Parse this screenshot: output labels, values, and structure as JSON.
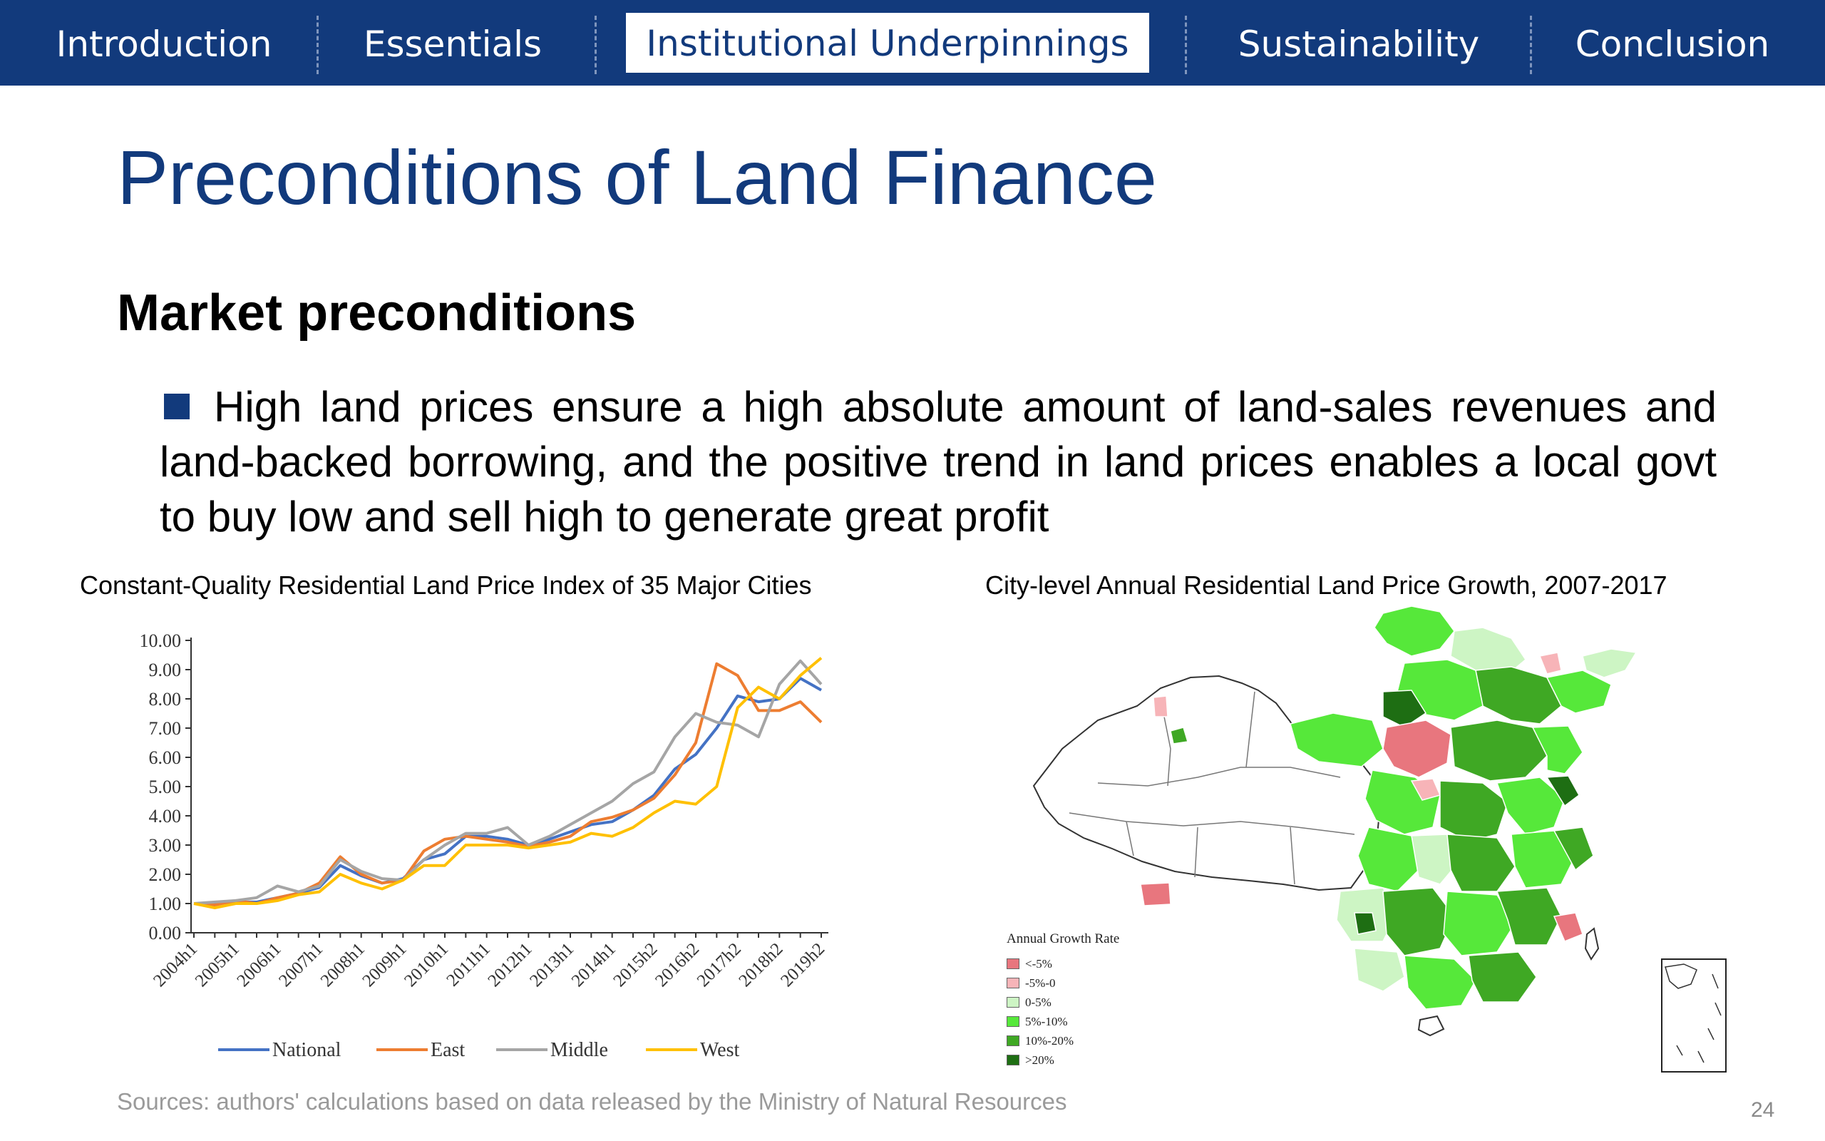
{
  "nav": {
    "tabs": [
      {
        "label": "Introduction",
        "active": false
      },
      {
        "label": "Essentials",
        "active": false
      },
      {
        "label": "Institutional Underpinnings",
        "active": true
      },
      {
        "label": "Sustainability",
        "active": false
      },
      {
        "label": "Conclusion",
        "active": false
      }
    ]
  },
  "slide": {
    "title": "Preconditions of Land Finance",
    "section": "Market preconditions",
    "bullet": "High land prices ensure a high absolute amount of land-sales revenues and land-backed borrowing, and the positive trend in land prices enables a local govt to buy low and sell high to generate great profit",
    "sources": "Sources: authors' calculations based on data released by the Ministry of Natural Resources",
    "page_number": "24"
  },
  "colors": {
    "brand": "#123a7c",
    "national": "#4472c4",
    "east": "#ed7d31",
    "middle": "#a5a5a5",
    "west": "#ffc000"
  },
  "chart_data": {
    "type": "line",
    "title": "Constant-Quality Residential Land Price Index of 35 Major Cities",
    "ylim": [
      0,
      10
    ],
    "y_ticks": [
      "0.00",
      "1.00",
      "2.00",
      "3.00",
      "4.00",
      "5.00",
      "6.00",
      "7.00",
      "8.00",
      "9.00",
      "10.00"
    ],
    "x_labels": [
      "2004h1",
      "2005h1",
      "2006h1",
      "2007h1",
      "2008h1",
      "2009h1",
      "2010h1",
      "2011h1",
      "2012h1",
      "2013h1",
      "2014h1",
      "2015h2",
      "2016h2",
      "2017h2",
      "2018h2",
      "2019h2"
    ],
    "x_label_every": 2,
    "legend_position": "bottom",
    "series": [
      {
        "name": "National",
        "color": "#4472c4",
        "values": [
          1.0,
          1.0,
          1.05,
          1.05,
          1.2,
          1.35,
          1.55,
          2.3,
          1.95,
          1.7,
          1.85,
          2.5,
          2.7,
          3.3,
          3.3,
          3.2,
          3.0,
          3.2,
          3.45,
          3.7,
          3.8,
          4.2,
          4.7,
          5.6,
          6.1,
          7.0,
          8.1,
          7.9,
          8.0,
          8.7,
          8.3
        ]
      },
      {
        "name": "East",
        "color": "#ed7d31",
        "values": [
          1.0,
          0.95,
          1.1,
          1.0,
          1.2,
          1.35,
          1.7,
          2.6,
          2.0,
          1.7,
          1.8,
          2.8,
          3.2,
          3.3,
          3.2,
          3.1,
          2.95,
          3.1,
          3.3,
          3.8,
          3.95,
          4.2,
          4.6,
          5.4,
          6.5,
          9.2,
          8.8,
          7.6,
          7.6,
          7.9,
          7.2
        ]
      },
      {
        "name": "Middle",
        "color": "#a5a5a5",
        "values": [
          1.0,
          1.05,
          1.1,
          1.2,
          1.6,
          1.4,
          1.6,
          2.5,
          2.1,
          1.85,
          1.8,
          2.5,
          3.0,
          3.4,
          3.4,
          3.6,
          3.0,
          3.3,
          3.7,
          4.1,
          4.5,
          5.1,
          5.5,
          6.7,
          7.5,
          7.2,
          7.1,
          6.7,
          8.5,
          9.3,
          8.5
        ]
      },
      {
        "name": "West",
        "color": "#ffc000",
        "values": [
          1.0,
          0.85,
          1.0,
          1.0,
          1.1,
          1.3,
          1.4,
          2.0,
          1.7,
          1.5,
          1.8,
          2.3,
          2.3,
          3.0,
          3.0,
          3.0,
          2.9,
          3.0,
          3.1,
          3.4,
          3.3,
          3.6,
          4.1,
          4.5,
          4.4,
          5.0,
          7.7,
          8.4,
          8.0,
          8.8,
          9.4
        ]
      }
    ]
  },
  "map": {
    "title": "City-level Annual Residential Land Price Growth, 2007-2017",
    "legend_title": "Annual Growth Rate",
    "legend": [
      {
        "label": "<-5%",
        "color": "#e8767e"
      },
      {
        "label": "-5%-0",
        "color": "#f7b4b8"
      },
      {
        "label": "0-5%",
        "color": "#cdf5c4"
      },
      {
        "label": "5%-10%",
        "color": "#56e83a"
      },
      {
        "label": "10%-20%",
        "color": "#3fa824"
      },
      {
        "label": ">20%",
        "color": "#1e6e13"
      }
    ]
  }
}
